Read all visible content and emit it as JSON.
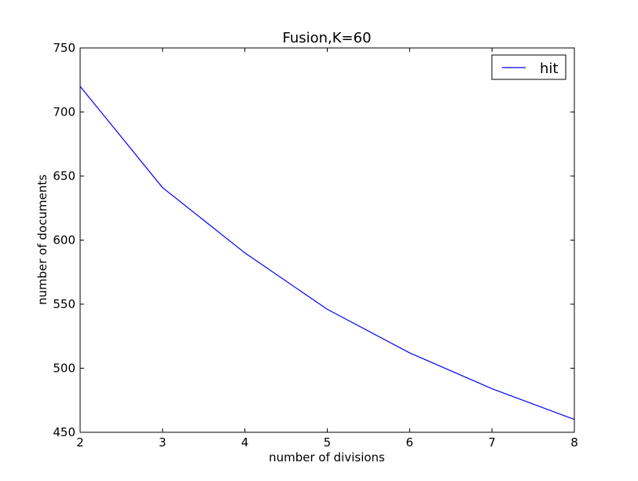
{
  "chart_data": {
    "type": "line",
    "title": "Fusion,K=60",
    "xlabel": "number of divisions",
    "ylabel": "number of documents",
    "xlim": [
      2,
      8
    ],
    "ylim": [
      450,
      750
    ],
    "x_ticks": [
      "2",
      "3",
      "4",
      "5",
      "6",
      "7",
      "8"
    ],
    "y_ticks": [
      "450",
      "500",
      "550",
      "600",
      "650",
      "700",
      "750"
    ],
    "grid": false,
    "legend_position": "top-right",
    "series": [
      {
        "name": "hit",
        "color": "#0000ff",
        "x": [
          2,
          3,
          4,
          5,
          6,
          7,
          8
        ],
        "y": [
          720,
          641,
          590,
          546,
          512,
          484,
          460
        ]
      }
    ]
  }
}
